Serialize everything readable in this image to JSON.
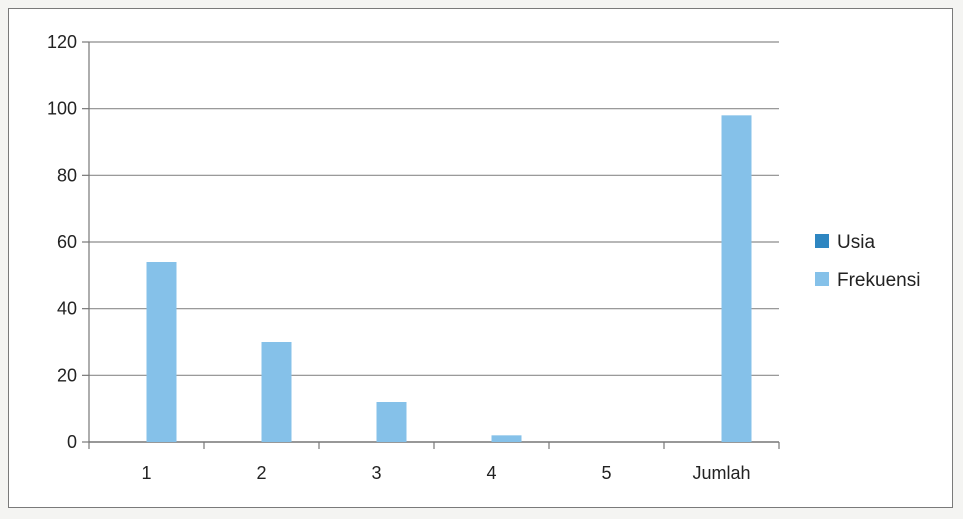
{
  "chart_data": {
    "type": "bar",
    "categories": [
      "1",
      "2",
      "3",
      "4",
      "5",
      "Jumlah"
    ],
    "series": [
      {
        "name": "Usia",
        "values": [
          0,
          0,
          0,
          0,
          0,
          0
        ],
        "color": "#2e86c1"
      },
      {
        "name": "Frekuensi",
        "values": [
          54,
          30,
          12,
          2,
          0,
          98
        ],
        "color": "#85c1e9"
      }
    ],
    "ylim": [
      0,
      120
    ],
    "yticks": [
      0,
      20,
      40,
      60,
      80,
      100,
      120
    ],
    "grid": true,
    "legend_position": "right",
    "title": "",
    "xlabel": "",
    "ylabel": ""
  }
}
